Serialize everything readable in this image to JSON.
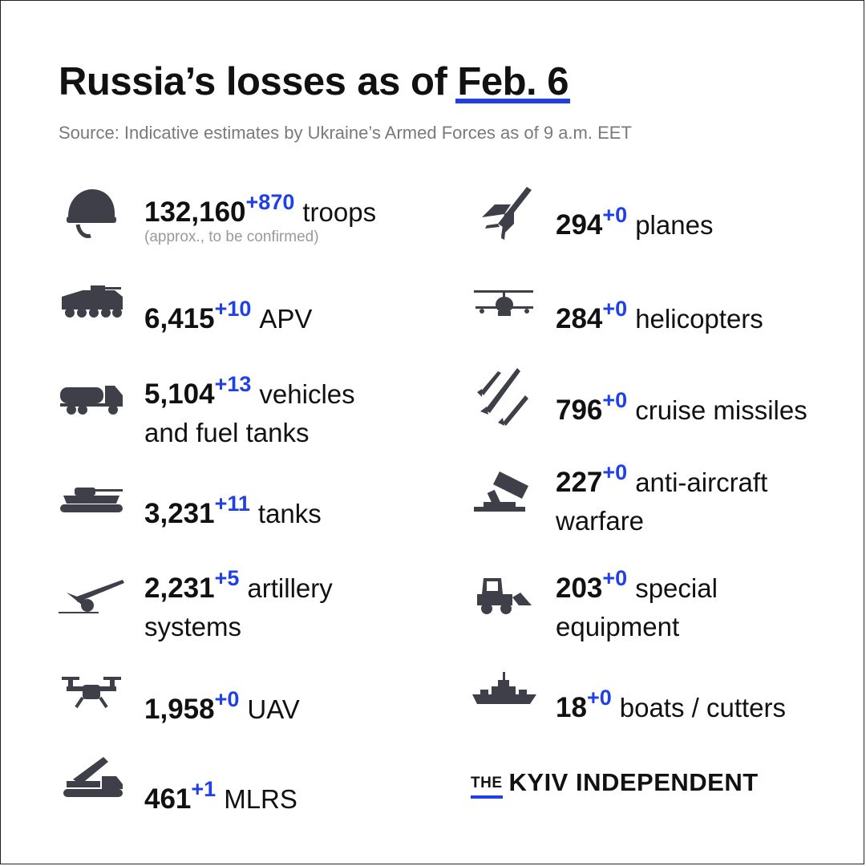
{
  "title": {
    "prefix": "Russia’s losses",
    "middle": "as of",
    "date": "Feb. 6"
  },
  "subtitle": "Source: Indicative estimates by Ukraine’s Armed Forces as of 9 a.m. EET",
  "colors": {
    "accent": "#1f40e6",
    "icon": "#3e3f48",
    "text": "#111111",
    "muted": "#7a7a7a"
  },
  "left": [
    {
      "icon": "helmet-icon",
      "value": "132,160",
      "delta": "+870",
      "label": "troops",
      "note": "(approx., to be confirmed)"
    },
    {
      "icon": "apc-icon",
      "value": "6,415",
      "delta": "+10",
      "label": "APV"
    },
    {
      "icon": "fuel-truck-icon",
      "value": "5,104",
      "delta": "+13",
      "label": "vehicles",
      "label2": "and fuel tanks"
    },
    {
      "icon": "tank-icon",
      "value": "3,231",
      "delta": "+11",
      "label": "tanks"
    },
    {
      "icon": "artillery-icon",
      "value": "2,231",
      "delta": "+5",
      "label": "artillery",
      "label2": "systems"
    },
    {
      "icon": "drone-icon",
      "value": "1,958",
      "delta": "+0",
      "label": "UAV"
    },
    {
      "icon": "mlrs-icon",
      "value": "461",
      "delta": "+1",
      "label": "MLRS"
    }
  ],
  "right": [
    {
      "icon": "plane-icon",
      "value": "294",
      "delta": "+0",
      "label": "planes"
    },
    {
      "icon": "helicopter-icon",
      "value": "284",
      "delta": "+0",
      "label": "helicopters"
    },
    {
      "icon": "missiles-icon",
      "value": "796",
      "delta": "+0",
      "label": "cruise missiles"
    },
    {
      "icon": "anti-aircraft-icon",
      "value": "227",
      "delta": "+0",
      "label": "anti-aircraft",
      "label2": "warfare"
    },
    {
      "icon": "loader-icon",
      "value": "203",
      "delta": "+0",
      "label": "special",
      "label2": "equipment"
    },
    {
      "icon": "ship-icon",
      "value": "18",
      "delta": "+0",
      "label": "boats / cutters"
    }
  ],
  "brand": {
    "the": "THE",
    "name": "KYIV INDEPENDENT"
  }
}
